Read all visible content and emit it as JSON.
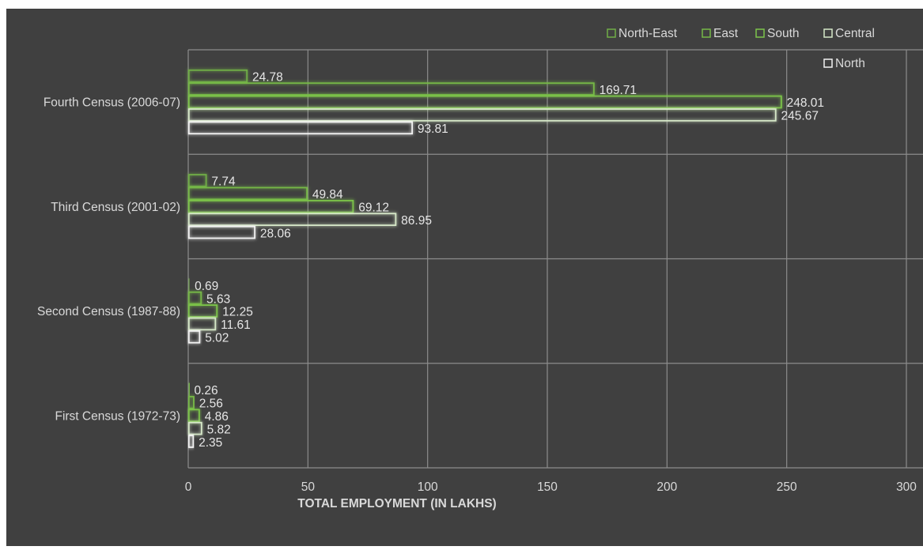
{
  "colors": {
    "background": "#404040",
    "grid": "#8c8c8c",
    "text": "#d9d9d9",
    "series": [
      "#70ad47",
      "#76b847",
      "#7cc44a",
      "#d6e8c8",
      "#f2f2f2"
    ]
  },
  "chart_data": {
    "type": "bar",
    "orientation": "horizontal",
    "title": "",
    "xlabel": "TOTAL EMPLOYMENT (IN LAKHS)",
    "ylabel": "",
    "xlim": [
      0,
      300
    ],
    "x_ticks": [
      0,
      50,
      100,
      150,
      200,
      250,
      300
    ],
    "grid": true,
    "legend_position": "top-right",
    "categories": [
      "Fourth Census (2006-07)",
      "Third Census (2001-02)",
      "Second Census (1987-88)",
      "First Census (1972-73)"
    ],
    "series": [
      {
        "name": "North-East",
        "values": [
          24.78,
          7.74,
          0.69,
          0.26
        ]
      },
      {
        "name": "East",
        "values": [
          169.71,
          49.84,
          5.63,
          2.56
        ]
      },
      {
        "name": "South",
        "values": [
          248.01,
          69.12,
          12.25,
          4.86
        ]
      },
      {
        "name": "Central",
        "values": [
          245.67,
          86.95,
          11.61,
          5.82
        ]
      },
      {
        "name": "North",
        "values": [
          93.81,
          28.06,
          5.02,
          2.35
        ]
      }
    ]
  }
}
